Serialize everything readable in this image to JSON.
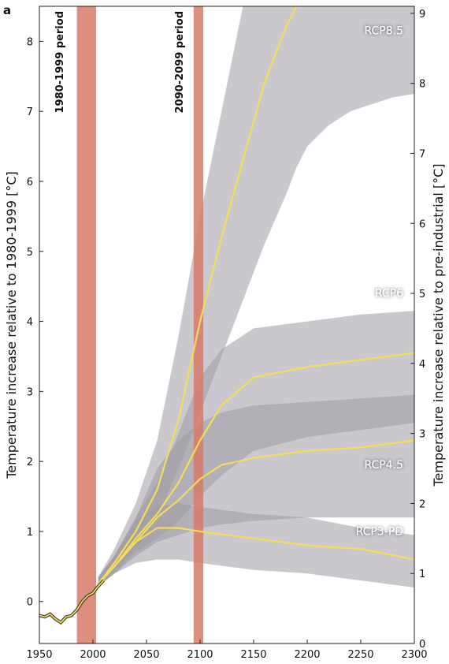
{
  "chart_data": {
    "type": "area",
    "panel_label": "a",
    "xlabel": "",
    "ylabel_left": "Temperature increase relative to 1980-1999 [°C]",
    "ylabel_right": "Temperature increase relative to pre-industrial [°C]",
    "xlim": [
      1950,
      2300
    ],
    "ylim_left": [
      -0.6,
      8.5
    ],
    "ylim_right": [
      0,
      9
    ],
    "right_axis_offset": -0.6,
    "x_ticks": [
      1950,
      2000,
      2050,
      2100,
      2150,
      2200,
      2250,
      2300
    ],
    "y_ticks_left": [
      0,
      1,
      2,
      3,
      4,
      5,
      6,
      7,
      8
    ],
    "y_ticks_right": [
      0,
      1,
      2,
      3,
      4,
      5,
      6,
      7,
      8,
      9
    ],
    "grid": false,
    "periods": [
      {
        "label": "1980-1999 period",
        "range": [
          1985,
          2003
        ]
      },
      {
        "label": "2090-2099 period",
        "range": [
          2094,
          2103
        ]
      }
    ],
    "historical": {
      "x": [
        1950,
        1955,
        1960,
        1965,
        1970,
        1975,
        1980,
        1985,
        1990,
        1995,
        2000,
        2005,
        2010
      ],
      "y": [
        -0.2,
        -0.22,
        -0.18,
        -0.25,
        -0.3,
        -0.22,
        -0.2,
        -0.12,
        0.0,
        0.08,
        0.12,
        0.22,
        0.3
      ]
    },
    "series": [
      {
        "name": "RCP8.5",
        "x": [
          2005,
          2020,
          2040,
          2060,
          2080,
          2100,
          2120,
          2140,
          2160,
          2180,
          2190
        ],
        "mean": [
          0.25,
          0.55,
          1.0,
          1.6,
          2.6,
          4.0,
          5.2,
          6.3,
          7.4,
          8.2,
          8.5
        ],
        "lower": [
          0.22,
          0.45,
          0.75,
          1.2,
          1.9,
          2.7,
          3.5,
          4.3,
          5.1,
          5.8,
          6.2
        ],
        "upper": [
          0.35,
          0.75,
          1.4,
          2.3,
          3.8,
          5.5,
          7.0,
          8.5,
          8.5,
          8.5,
          8.5
        ],
        "band_lower_extended": {
          "x": [
            2190,
            2200,
            2220,
            2240,
            2260,
            2280,
            2300
          ],
          "y": [
            6.2,
            6.5,
            6.8,
            7.0,
            7.1,
            7.2,
            7.25
          ]
        }
      },
      {
        "name": "RCP6",
        "x": [
          2005,
          2020,
          2040,
          2060,
          2080,
          2100,
          2120,
          2150,
          2200,
          2250,
          2300
        ],
        "mean": [
          0.25,
          0.5,
          0.9,
          1.25,
          1.7,
          2.3,
          2.8,
          3.2,
          3.35,
          3.45,
          3.55
        ],
        "lower": [
          0.22,
          0.4,
          0.7,
          0.9,
          1.15,
          1.5,
          1.8,
          2.15,
          2.35,
          2.45,
          2.55
        ],
        "upper": [
          0.35,
          0.65,
          1.2,
          1.7,
          2.4,
          3.2,
          3.6,
          3.9,
          4.0,
          4.1,
          4.15
        ]
      },
      {
        "name": "RCP4.5",
        "x": [
          2005,
          2020,
          2040,
          2060,
          2080,
          2100,
          2120,
          2150,
          2200,
          2250,
          2300
        ],
        "mean": [
          0.25,
          0.5,
          0.85,
          1.2,
          1.45,
          1.75,
          1.95,
          2.05,
          2.15,
          2.2,
          2.3
        ],
        "lower": [
          0.22,
          0.4,
          0.65,
          0.85,
          0.95,
          1.05,
          1.1,
          1.15,
          1.2,
          1.2,
          1.2
        ],
        "upper": [
          0.35,
          0.65,
          1.2,
          1.9,
          2.3,
          2.55,
          2.7,
          2.8,
          2.85,
          2.9,
          2.95
        ]
      },
      {
        "name": "RCP3-PD",
        "x": [
          2005,
          2020,
          2040,
          2060,
          2080,
          2100,
          2150,
          2200,
          2250,
          2300
        ],
        "mean": [
          0.25,
          0.5,
          0.85,
          1.05,
          1.05,
          1.0,
          0.9,
          0.8,
          0.75,
          0.6
        ],
        "lower": [
          0.22,
          0.4,
          0.55,
          0.6,
          0.6,
          0.55,
          0.45,
          0.4,
          0.3,
          0.2
        ],
        "upper": [
          0.35,
          0.65,
          1.15,
          1.35,
          1.4,
          1.35,
          1.25,
          1.2,
          1.05,
          0.95
        ]
      }
    ],
    "colors": {
      "band": "#9e9aa4",
      "band_overlap": "#7a7681",
      "mean_line": "#f4dc5a",
      "period_bar": "#d77a68",
      "historical_line": "#f4dc5a",
      "historical_edge": "#333333"
    }
  }
}
